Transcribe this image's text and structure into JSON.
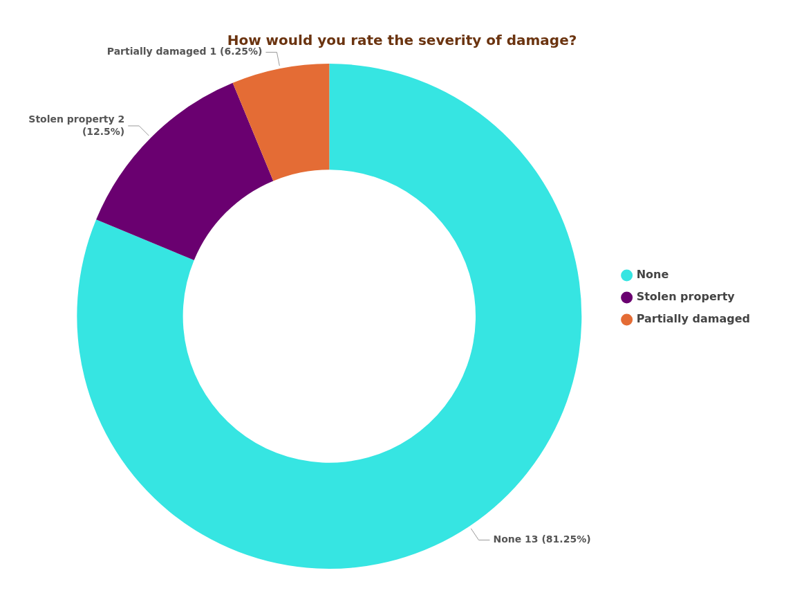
{
  "chart_data": {
    "type": "donut",
    "title": "How would you rate the severity of damage?",
    "categories": [
      "None",
      "Stolen property",
      "Partially damaged"
    ],
    "values": [
      13,
      2,
      1
    ],
    "colors": [
      "#36e5e2",
      "#6a0070",
      "#e46c35"
    ],
    "value_labels": [
      "None 13 (81.25%)",
      "Stolen property 2 (12.5%)",
      "Partially damaged 1 (6.25%)"
    ],
    "legend": "right"
  }
}
